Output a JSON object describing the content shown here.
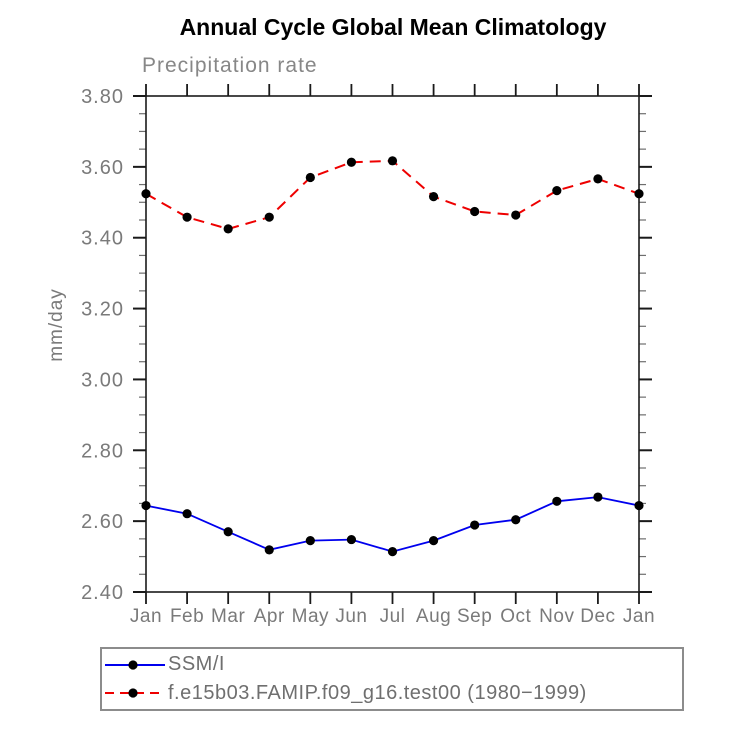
{
  "header": {
    "title": "Annual Cycle Global Mean Climatology",
    "subtitle": "Precipitation rate"
  },
  "chart_data": {
    "type": "line",
    "title": "Annual Cycle Global Mean Climatology",
    "subtitle": "Precipitation rate",
    "xlabel": "",
    "ylabel": "mm/day",
    "categories": [
      "Jan",
      "Feb",
      "Mar",
      "Apr",
      "May",
      "Jun",
      "Jul",
      "Aug",
      "Sep",
      "Oct",
      "Nov",
      "Dec",
      "Jan"
    ],
    "series": [
      {
        "name": "SSM/I",
        "color": "#0000ee",
        "line_style": "solid",
        "marker": "filled-circle",
        "marker_color": "#000000",
        "values": [
          2.644,
          2.621,
          2.57,
          2.519,
          2.545,
          2.548,
          2.514,
          2.545,
          2.589,
          2.604,
          2.656,
          2.668,
          2.644
        ]
      },
      {
        "name": "f.e15b03.FAMIP.f09_g16.test00 (1980−1999)",
        "color": "#ee0000",
        "line_style": "dashed",
        "marker": "filled-circle",
        "marker_color": "#000000",
        "values": [
          3.524,
          3.458,
          3.425,
          3.458,
          3.57,
          3.613,
          3.617,
          3.516,
          3.474,
          3.464,
          3.533,
          3.566,
          3.524
        ]
      }
    ],
    "ylim": [
      2.4,
      3.8
    ],
    "y_major_step": 0.2,
    "y_minor_step": 0.05,
    "y_tick_labels": [
      "2.40",
      "2.60",
      "2.80",
      "3.00",
      "3.20",
      "3.40",
      "3.60",
      "3.80"
    ],
    "grid": false,
    "legend_position": "bottom-left-box",
    "colors": {
      "axis": "#1a1a1a",
      "tick_minor": "#6e6e6e",
      "text": "#7a7a7a",
      "legend_border": "#8c8c8c",
      "legend_text": "#6f6f6f"
    }
  }
}
